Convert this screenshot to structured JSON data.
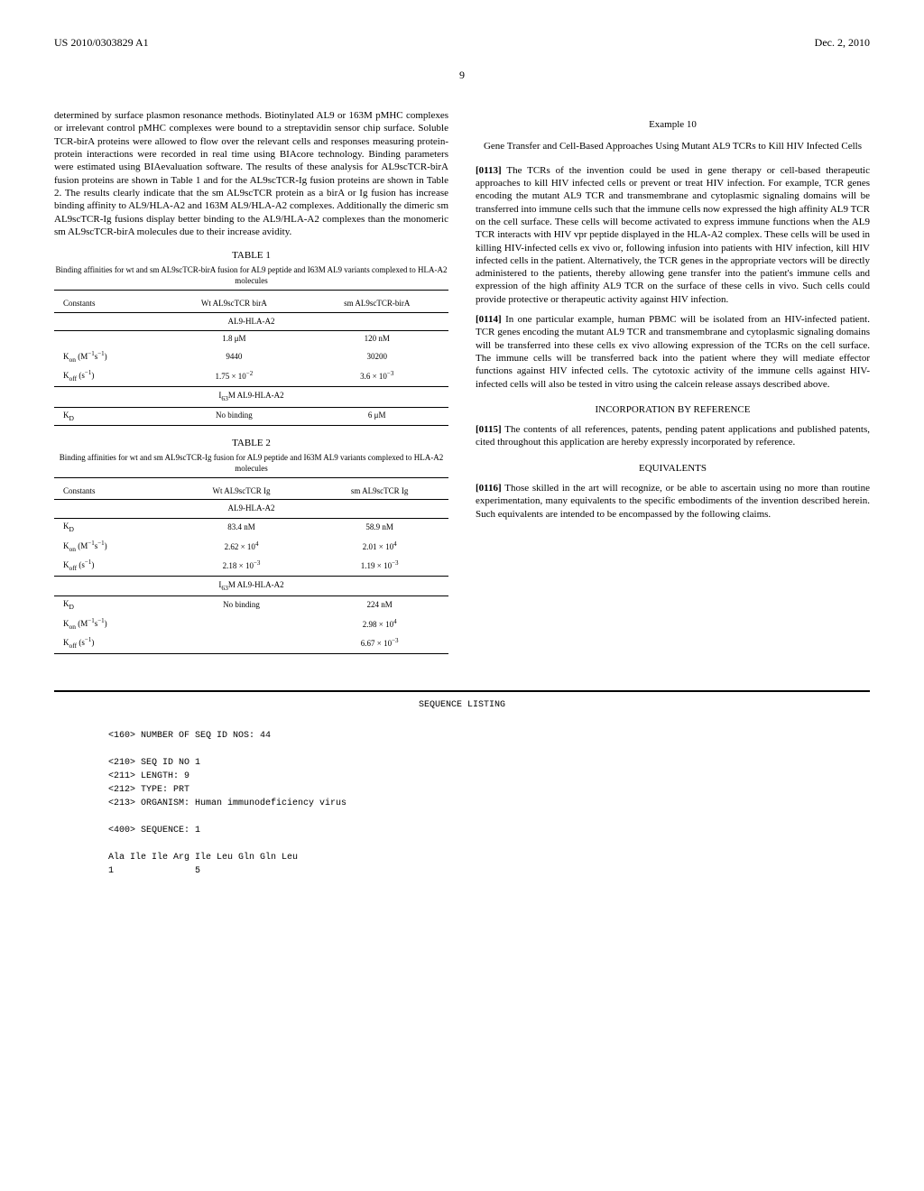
{
  "header": {
    "pub_number": "US 2010/0303829 A1",
    "date": "Dec. 2, 2010"
  },
  "page_number": "9",
  "left_column": {
    "para1": "determined by surface plasmon resonance methods. Biotinylated AL9 or 163M pMHC complexes or irrelevant control pMHC complexes were bound to a streptavidin sensor chip surface. Soluble TCR-birA proteins were allowed to flow over the relevant cells and responses measuring protein-protein interactions were recorded in real time using BIAcore technology. Binding parameters were estimated using BIAevaluation software. The results of these analysis for AL9scTCR-birA fusion proteins are shown in Table 1 and for the AL9scTCR-Ig fusion proteins are shown in Table 2. The results clearly indicate that the sm AL9scTCR protein as a birA or Ig fusion has increase binding affinity to AL9/HLA-A2 and 163M AL9/HLA-A2 complexes. Additionally the dimeric sm AL9scTCR-Ig fusions display better binding to the AL9/HLA-A2 complexes than the monomeric sm AL9scTCR-birA molecules due to their increase avidity.",
    "table1": {
      "title": "TABLE 1",
      "subtitle": "Binding affinities for wt and sm AL9scTCR-birA fusion for AL9 peptide and I63M AL9 variants complexed to HLA-A2 molecules",
      "col_headers": [
        "Constants",
        "Wt AL9scTCR birA",
        "sm AL9scTCR-birA"
      ],
      "section1_header": "AL9-HLA-A2",
      "rows1": [
        {
          "c0": "",
          "c1": "1.8 μM",
          "c2": "120 nM"
        },
        {
          "c0": "K_on (M⁻¹s⁻¹)",
          "c1": "9440",
          "c2": "30200"
        },
        {
          "c0": "K_off (s⁻¹)",
          "c1": "1.75 × 10⁻²",
          "c2": "3.6 × 10⁻³"
        }
      ],
      "section2_header": "I₆₃M AL9-HLA-A2",
      "rows2": [
        {
          "c0": "K_D",
          "c1": "No binding",
          "c2": "6 μM"
        }
      ]
    },
    "table2": {
      "title": "TABLE 2",
      "subtitle": "Binding affinities for wt and sm AL9scTCR-Ig fusion for AL9 peptide and I63M AL9 variants complexed to HLA-A2 molecules",
      "col_headers": [
        "Constants",
        "Wt AL9scTCR Ig",
        "sm AL9scTCR Ig"
      ],
      "section1_header": "AL9-HLA-A2",
      "rows1": [
        {
          "c0": "K_D",
          "c1": "83.4 nM",
          "c2": "58.9 nM"
        },
        {
          "c0": "K_on (M⁻¹s⁻¹)",
          "c1": "2.62 × 10⁴",
          "c2": "2.01 × 10⁴"
        },
        {
          "c0": "K_off (s⁻¹)",
          "c1": "2.18 × 10⁻³",
          "c2": "1.19 × 10⁻³"
        }
      ],
      "section2_header": "I₆₃M AL9-HLA-A2",
      "rows2": [
        {
          "c0": "K_D",
          "c1": "No binding",
          "c2": "224 nM"
        },
        {
          "c0": "K_on (M⁻¹s⁻¹)",
          "c1": "",
          "c2": "2.98 × 10⁴"
        },
        {
          "c0": "K_off (s⁻¹)",
          "c1": "",
          "c2": "6.67 × 10⁻³"
        }
      ]
    }
  },
  "right_column": {
    "example_title": "Example 10",
    "example_subtitle": "Gene Transfer and Cell-Based Approaches Using Mutant AL9 TCRs to Kill HIV Infected Cells",
    "para113_num": "[0113]",
    "para113": "    The TCRs of the invention could be used in gene therapy or cell-based therapeutic approaches to kill HIV infected cells or prevent or treat HIV infection. For example, TCR genes encoding the mutant AL9 TCR and transmembrane and cytoplasmic signaling domains will be transferred into immune cells such that the immune cells now expressed the high affinity AL9 TCR on the cell surface. These cells will become activated to express immune functions when the AL9 TCR interacts with HIV vpr peptide displayed in the HLA-A2 complex. These cells will be used in killing HIV-infected cells ex vivo or, following infusion into patients with HIV infection, kill HIV infected cells in the patient. Alternatively, the TCR genes in the appropriate vectors will be directly administered to the patients, thereby allowing gene transfer into the patient's immune cells and expression of the high affinity AL9 TCR on the surface of these cells in vivo. Such cells could provide protective or therapeutic activity against HIV infection.",
    "para114_num": "[0114]",
    "para114": "    In one particular example, human PBMC will be isolated from an HIV-infected patient. TCR genes encoding the mutant AL9 TCR and transmembrane and cytoplasmic signaling domains will be transferred into these cells ex vivo allowing expression of the TCRs on the cell surface. The immune cells will be transferred back into the patient where they will mediate effector functions against HIV infected cells. The cytotoxic activity of the immune cells against HIV-infected cells will also be tested in vitro using the calcein release assays described above.",
    "incorp_heading": "INCORPORATION BY REFERENCE",
    "para115_num": "[0115]",
    "para115": "    The contents of all references, patents, pending patent applications and published patents, cited throughout this application are hereby expressly incorporated by reference.",
    "equiv_heading": "EQUIVALENTS",
    "para116_num": "[0116]",
    "para116": "    Those skilled in the art will recognize, or be able to ascertain using no more than routine experimentation, many equivalents to the specific embodiments of the invention described herein. Such equivalents are intended to be encompassed by the following claims."
  },
  "sequence": {
    "title": "SEQUENCE LISTING",
    "line1": "<160> NUMBER OF SEQ ID NOS: 44",
    "line2": "<210> SEQ ID NO 1",
    "line3": "<211> LENGTH: 9",
    "line4": "<212> TYPE: PRT",
    "line5": "<213> ORGANISM: Human immunodeficiency virus",
    "line6": "<400> SEQUENCE: 1",
    "line7": "Ala Ile Ile Arg Ile Leu Gln Gln Leu",
    "line8": "1               5"
  }
}
